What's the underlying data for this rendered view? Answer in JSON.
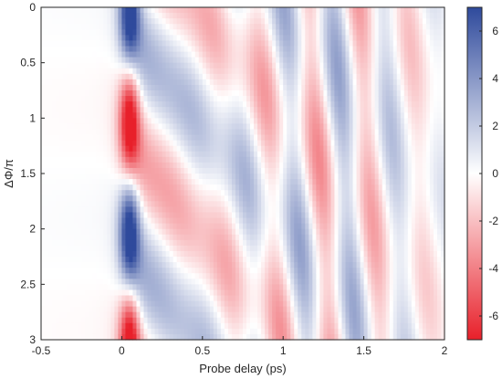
{
  "chart_data": {
    "type": "heatmap",
    "title": "",
    "xlabel": "Probe delay (ps)",
    "ylabel": "ΔΦ/π",
    "xlim": [
      -0.5,
      2
    ],
    "ylim": [
      0,
      3
    ],
    "y_direction": "down",
    "x_ticks": [
      "-0.5",
      "0",
      "0.5",
      "1",
      "1.5",
      "2"
    ],
    "y_ticks": [
      "0",
      "0.5",
      "1",
      "1.5",
      "2",
      "2.5",
      "3"
    ],
    "colorbar": {
      "range": [
        -7,
        7
      ],
      "ticks": [
        "6",
        "4",
        "2",
        "0",
        "-2",
        "-4",
        "-6"
      ],
      "colormap": "red-white-blue",
      "low_color": "#e8202a",
      "mid_color": "#ffffff",
      "high_color": "#2f4a9c"
    },
    "grid": false
  }
}
